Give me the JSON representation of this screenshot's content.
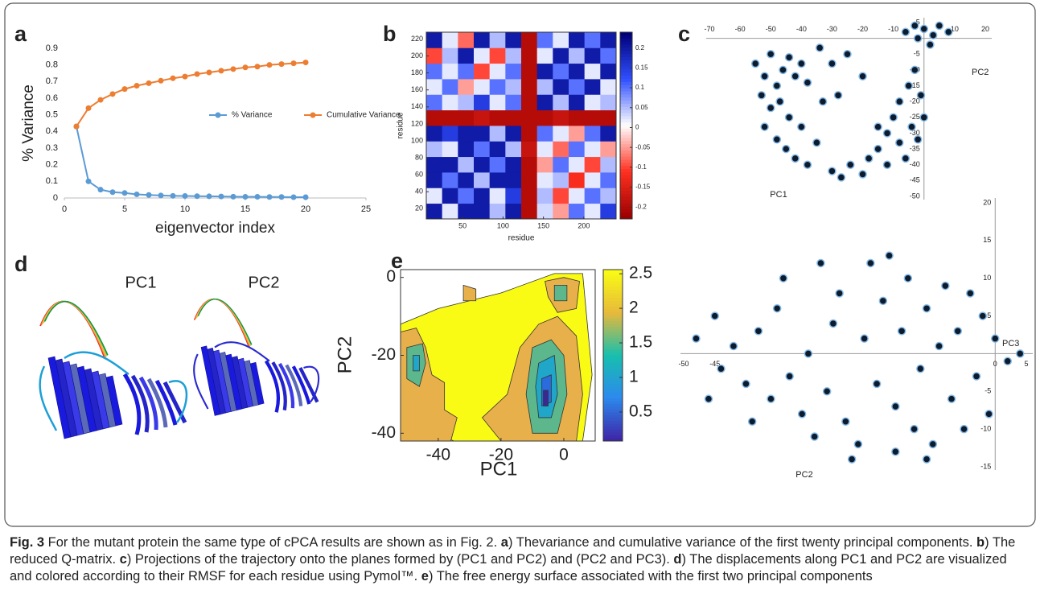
{
  "panel_labels": [
    "a",
    "b",
    "c",
    "d",
    "e"
  ],
  "structure_panel": {
    "labels": [
      "PC1",
      "PC2"
    ]
  },
  "chart_data": [
    {
      "type": "line",
      "ylabel": "% Variance",
      "xlabel": "eigenvector index",
      "x": [
        1,
        2,
        3,
        4,
        5,
        6,
        7,
        8,
        9,
        10,
        11,
        12,
        13,
        14,
        15,
        16,
        17,
        18,
        19,
        20
      ],
      "series": [
        {
          "name": "% Variance",
          "color": "#5b9bd5",
          "values": [
            0.43,
            0.1,
            0.05,
            0.035,
            0.03,
            0.022,
            0.018,
            0.015,
            0.013,
            0.012,
            0.011,
            0.01,
            0.009,
            0.008,
            0.007,
            0.007,
            0.006,
            0.006,
            0.005,
            0.005
          ]
        },
        {
          "name": "Cumulative Variance",
          "color": "#ed7d31",
          "values": [
            0.43,
            0.54,
            0.59,
            0.625,
            0.655,
            0.675,
            0.69,
            0.705,
            0.72,
            0.73,
            0.745,
            0.755,
            0.765,
            0.775,
            0.785,
            0.79,
            0.8,
            0.805,
            0.81,
            0.815
          ]
        }
      ],
      "xlim": [
        0,
        25
      ],
      "ylim": [
        0,
        0.9
      ],
      "xticks": [
        0,
        5,
        10,
        15,
        20,
        25
      ],
      "yticks": [
        0,
        0.1,
        0.2,
        0.3,
        0.4,
        0.5,
        0.6,
        0.7,
        0.8,
        0.9
      ],
      "legend": "center"
    },
    {
      "type": "heatmap",
      "xlabel": "residue",
      "ylabel": "residue",
      "xlim": [
        5,
        240
      ],
      "ylim": [
        8,
        228
      ],
      "xticks": [
        50,
        100,
        150,
        200
      ],
      "yticks": [
        20,
        40,
        60,
        80,
        100,
        120,
        140,
        160,
        180,
        200,
        220
      ],
      "z": [
        [
          0.2,
          0.02,
          0.2,
          0.2,
          0.05,
          0.2,
          -0.2,
          0.03,
          -0.05,
          0.1,
          0.02,
          0.15
        ],
        [
          0.02,
          0.2,
          0.1,
          0.2,
          0.02,
          0.15,
          -0.2,
          0.05,
          -0.1,
          0.02,
          0.1,
          0.05
        ],
        [
          0.2,
          0.1,
          0.2,
          0.05,
          0.2,
          0.2,
          -0.2,
          0.02,
          0.05,
          -0.12,
          0.02,
          0.1
        ],
        [
          0.2,
          0.2,
          0.05,
          0.2,
          0.1,
          0.2,
          -0.2,
          -0.05,
          0.1,
          0.02,
          -0.1,
          0.05
        ],
        [
          0.05,
          0.02,
          0.2,
          0.1,
          0.2,
          0.05,
          -0.18,
          0.02,
          -0.08,
          0.1,
          0.02,
          -0.05
        ],
        [
          0.2,
          0.15,
          0.2,
          0.2,
          0.05,
          0.2,
          -0.2,
          0.1,
          0.02,
          -0.05,
          0.1,
          0.2
        ],
        [
          -0.2,
          -0.2,
          -0.2,
          -0.18,
          -0.2,
          -0.2,
          -0.2,
          -0.2,
          -0.18,
          -0.2,
          -0.2,
          -0.2
        ],
        [
          0.1,
          0.02,
          0.05,
          0.15,
          0.02,
          0.1,
          -0.2,
          0.2,
          0.05,
          0.2,
          0.02,
          0.05
        ],
        [
          0.02,
          0.1,
          -0.05,
          0.02,
          0.1,
          0.05,
          -0.2,
          0.05,
          0.2,
          0.1,
          0.2,
          0.02
        ],
        [
          0.1,
          0.02,
          0.1,
          -0.1,
          0.02,
          0.1,
          -0.2,
          0.2,
          0.1,
          0.2,
          0.02,
          0.2
        ],
        [
          -0.1,
          0.05,
          0.2,
          0.02,
          -0.1,
          0.05,
          -0.2,
          0.02,
          0.2,
          0.05,
          0.2,
          0.1
        ],
        [
          0.2,
          0.02,
          -0.08,
          0.2,
          0.05,
          0.2,
          -0.2,
          0.1,
          0.02,
          0.2,
          0.1,
          0.2
        ]
      ],
      "clim": [
        -0.23,
        0.24
      ],
      "cticks": [
        -0.2,
        -0.15,
        -0.1,
        -0.05,
        0,
        0.05,
        0.1,
        0.15,
        0.2
      ],
      "colormap": [
        "#9b0000",
        "#ff3020",
        "#ffffff",
        "#3050ff",
        "#00007a"
      ]
    },
    {
      "type": "scatter",
      "xlabel": "PC1",
      "ylabel": "PC2",
      "x": [
        -55,
        -52,
        -50,
        -48,
        -46,
        -44,
        -42,
        -40,
        -38,
        -53,
        -50,
        -47,
        -44,
        -40,
        -52,
        -48,
        -45,
        -42,
        -38,
        -35,
        -30,
        -27,
        -24,
        -20,
        -18,
        -15,
        -12,
        -10,
        -8,
        -5,
        -3,
        -1,
        0,
        -4,
        -8,
        -2,
        -12,
        -6,
        -15,
        -34,
        -30,
        -25,
        -20,
        -33,
        -28,
        -6,
        -3,
        0,
        3,
        5,
        8,
        2,
        -2
      ],
      "y": [
        -8,
        -12,
        -5,
        -15,
        -10,
        -6,
        -12,
        -8,
        -14,
        -18,
        -22,
        -20,
        -25,
        -28,
        -28,
        -32,
        -35,
        -38,
        -40,
        -33,
        -42,
        -44,
        -40,
        -43,
        -38,
        -35,
        -30,
        -25,
        -20,
        -15,
        -10,
        -18,
        -25,
        -28,
        -33,
        -32,
        -40,
        -38,
        -28,
        -3,
        -8,
        -5,
        -12,
        -20,
        -18,
        2,
        4,
        3,
        1,
        4,
        2,
        -2,
        0
      ],
      "xlim": [
        -70,
        20
      ],
      "ylim": [
        -50,
        5
      ],
      "xticks": [
        -70,
        -60,
        -50,
        -40,
        -30,
        -20,
        -10,
        10,
        20
      ],
      "yticks": [
        5,
        -5,
        -10,
        -15,
        -20,
        -25,
        -30,
        -35,
        -40,
        -45,
        -50
      ]
    },
    {
      "type": "scatter",
      "xlabel": "PC2",
      "ylabel": "PC3",
      "x": [
        -48,
        -45,
        -44,
        -42,
        -40,
        -38,
        -36,
        -35,
        -33,
        -31,
        -30,
        -29,
        -27,
        -26,
        -25,
        -24,
        -22,
        -21,
        -20,
        -19,
        -18,
        -17,
        -16,
        -15,
        -14,
        -13,
        -12,
        -11,
        -10,
        -9,
        -8,
        -7,
        -6,
        -5,
        -4,
        -3,
        -2,
        -1,
        0,
        2,
        4,
        -46,
        -39,
        -34,
        -28,
        -23,
        -16,
        -11
      ],
      "y": [
        2,
        5,
        -2,
        1,
        -4,
        3,
        -6,
        6,
        -3,
        -8,
        0,
        -11,
        -5,
        4,
        8,
        -9,
        -12,
        2,
        12,
        -4,
        7,
        13,
        -7,
        3,
        10,
        -10,
        -2,
        6,
        -12,
        1,
        9,
        -6,
        3,
        -10,
        8,
        -3,
        5,
        -8,
        2,
        -1,
        0,
        -6,
        -9,
        10,
        12,
        -14,
        -13,
        -14
      ],
      "xlim": [
        -50,
        5
      ],
      "ylim": [
        -15,
        20
      ],
      "xticks": [
        -50,
        -45,
        0,
        5
      ],
      "yticks": [
        20,
        15,
        10,
        5,
        -5,
        -10,
        -15
      ]
    },
    {
      "type": "contour",
      "xlabel": "PC1",
      "ylabel": "PC2",
      "xlim": [
        -52,
        10
      ],
      "ylim": [
        -42,
        2
      ],
      "xticks": [
        -40,
        -20,
        0
      ],
      "yticks": [
        0,
        -20,
        -40
      ],
      "clim": [
        0.08,
        2.56
      ],
      "cticks": [
        2.5,
        2,
        1.5,
        1,
        0.5
      ],
      "colormap": [
        "#3e26a8",
        "#2c8aed",
        "#18bfad",
        "#e6b93b",
        "#f9fb15"
      ],
      "regions": [
        {
          "level": 2.5,
          "color": "#f9fb15",
          "points": [
            [
              -52,
              -12
            ],
            [
              -40,
              -8
            ],
            [
              -20,
              -4
            ],
            [
              -3,
              1
            ],
            [
              6,
              1
            ],
            [
              9,
              -25
            ],
            [
              6,
              -42
            ],
            [
              -35,
              -42
            ],
            [
              -52,
              -36
            ]
          ]
        },
        {
          "level": 2,
          "color": "#e8b04a",
          "points": [
            [
              -52,
              -14
            ],
            [
              -47,
              -13
            ],
            [
              -44,
              -18
            ],
            [
              -42,
              -25
            ],
            [
              -38,
              -27
            ],
            [
              -38,
              -34
            ],
            [
              -34,
              -36
            ],
            [
              -36,
              -42
            ],
            [
              -52,
              -42
            ]
          ]
        },
        {
          "level": 2,
          "color": "#e8b04a",
          "points": [
            [
              -14,
              -18
            ],
            [
              -8,
              -12
            ],
            [
              -2,
              -10
            ],
            [
              4,
              -15
            ],
            [
              6,
              -30
            ],
            [
              4,
              -42
            ],
            [
              -20,
              -42
            ],
            [
              -26,
              -36
            ],
            [
              -18,
              -30
            ]
          ]
        },
        {
          "level": 2,
          "color": "#e8b04a",
          "points": [
            [
              -6,
              -1
            ],
            [
              0,
              0
            ],
            [
              5,
              -1
            ],
            [
              4,
              -8
            ],
            [
              -2,
              -9
            ],
            [
              -5,
              -5
            ]
          ]
        },
        {
          "level": 2,
          "color": "#e8b04a",
          "points": [
            [
              -32,
              -2
            ],
            [
              -28,
              -3
            ],
            [
              -28,
              -6
            ],
            [
              -32,
              -6
            ]
          ]
        },
        {
          "level": 1.5,
          "color": "#5cb88c",
          "points": [
            [
              -50,
              -18
            ],
            [
              -45,
              -17
            ],
            [
              -44,
              -22
            ],
            [
              -46,
              -28
            ],
            [
              -50,
              -26
            ]
          ]
        },
        {
          "level": 1.5,
          "color": "#5cb88c",
          "points": [
            [
              -10,
              -18
            ],
            [
              -4,
              -16
            ],
            [
              0,
              -20
            ],
            [
              1,
              -30
            ],
            [
              -2,
              -40
            ],
            [
              -10,
              -40
            ],
            [
              -12,
              -30
            ]
          ]
        },
        {
          "level": 1.5,
          "color": "#5cb88c",
          "points": [
            [
              -3,
              -2
            ],
            [
              1,
              -2
            ],
            [
              1,
              -6
            ],
            [
              -3,
              -6
            ]
          ]
        },
        {
          "level": 1,
          "color": "#1fa6c8",
          "points": [
            [
              -48,
              -20
            ],
            [
              -46,
              -20
            ],
            [
              -46,
              -24
            ],
            [
              -48,
              -24
            ]
          ]
        },
        {
          "level": 1,
          "color": "#1fa6c8",
          "points": [
            [
              -8,
              -22
            ],
            [
              -3,
              -20
            ],
            [
              -2,
              -30
            ],
            [
              -4,
              -36
            ],
            [
              -8,
              -36
            ],
            [
              -9,
              -28
            ]
          ]
        },
        {
          "level": 0.5,
          "color": "#2c6bdc",
          "points": [
            [
              -7,
              -26
            ],
            [
              -4,
              -25
            ],
            [
              -4,
              -32
            ],
            [
              -7,
              -33
            ]
          ]
        },
        {
          "level": 0.2,
          "color": "#3a2a8e",
          "points": [
            [
              -6.5,
              -29
            ],
            [
              -5,
              -29
            ],
            [
              -5,
              -33
            ],
            [
              -6.5,
              -33
            ]
          ]
        }
      ]
    }
  ],
  "caption": [
    {
      "text": "Fig. 3",
      "bold": true
    },
    {
      "text": " For the mutant protein the same type of cPCA results are shown as in Fig. 2. "
    },
    {
      "text": "a",
      "bold": true
    },
    {
      "text": ") Thevariance and cumulative variance of the first twenty principal components. "
    },
    {
      "text": "b",
      "bold": true
    },
    {
      "text": ") The reduced Q-matrix. "
    },
    {
      "text": "c",
      "bold": true
    },
    {
      "text": ") Projections of the trajectory onto the planes formed by (PC1 and PC2) and (PC2 and PC3). "
    },
    {
      "text": "d",
      "bold": true
    },
    {
      "text": ") The displacements along PC1 and PC2 are visualized and colored according to their RMSF for each residue using Pymol™. "
    },
    {
      "text": "e",
      "bold": true
    },
    {
      "text": ") The free energy surface associated with the first two principal components"
    }
  ]
}
